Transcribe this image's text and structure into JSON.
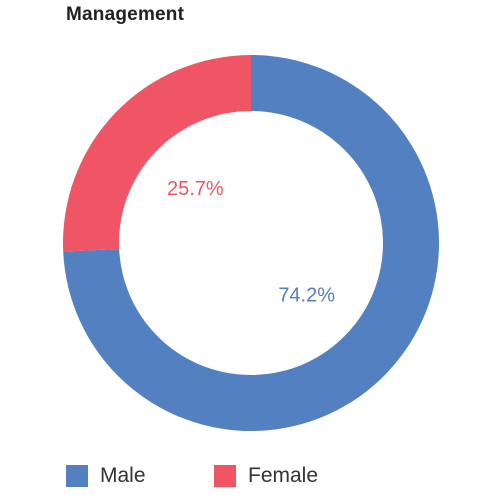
{
  "chart_data": {
    "type": "pie",
    "style": "donut",
    "title": "Management",
    "categories": [
      "Male",
      "Female"
    ],
    "values": [
      74.2,
      25.7
    ],
    "labels": [
      "74.2%",
      "25.7%"
    ],
    "colors": [
      "#5380c1",
      "#f05565"
    ],
    "legend": {
      "placement": "bottom",
      "items": [
        "Male",
        "Female"
      ]
    },
    "grid": false
  }
}
